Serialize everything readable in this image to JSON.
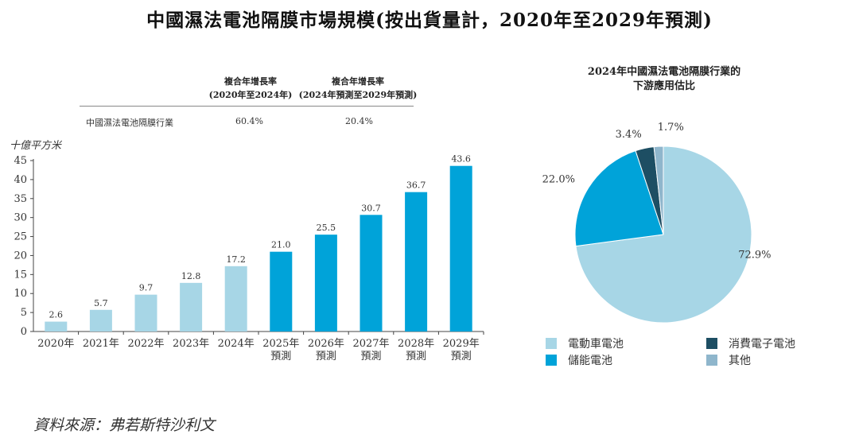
{
  "title": "中國濕法電池隔膜市場規模(按出貨量計，2020年至2029年預測)",
  "cagr_table": {
    "col1_header": [
      "複合年增長率",
      "(2020年至2024年)"
    ],
    "col2_header": [
      "複合年增長率",
      "(2024年預測至2029年預測)"
    ],
    "row_label": "中國濕法電池隔膜行業",
    "col1_value": "60.4%",
    "col2_value": "20.4%"
  },
  "unit_label": "十億平方米",
  "source": "資料來源：弗若斯特沙利文",
  "colors": {
    "actual": "#a7d6e6",
    "forecast": "#00a3d9",
    "consumer": "#1d4e63",
    "other": "#8fb6cc"
  },
  "pie_title_lines": [
    "2024年中國濕法電池隔膜行業的",
    "下游應用估比"
  ],
  "chart_data": [
    {
      "type": "bar",
      "title": "中國濕法電池隔膜市場規模(按出貨量計，2020年至2029年預測)",
      "ylabel": "十億平方米",
      "ylim": [
        0,
        45
      ],
      "yticks": [
        0,
        5,
        10,
        15,
        20,
        25,
        30,
        35,
        40,
        45
      ],
      "categories": [
        [
          "2020年"
        ],
        [
          "2021年"
        ],
        [
          "2022年"
        ],
        [
          "2023年"
        ],
        [
          "2024年"
        ],
        [
          "2025年",
          "預測"
        ],
        [
          "2026年",
          "預測"
        ],
        [
          "2027年",
          "預測"
        ],
        [
          "2028年",
          "預測"
        ],
        [
          "2029年",
          "預測"
        ]
      ],
      "values": [
        2.6,
        5.7,
        9.7,
        12.8,
        17.2,
        21.0,
        25.5,
        30.7,
        36.7,
        43.6
      ],
      "value_labels": [
        "2.6",
        "5.7",
        "9.7",
        "12.8",
        "17.2",
        "21.0",
        "25.5",
        "30.7",
        "36.7",
        "43.6"
      ],
      "forecast": [
        false,
        false,
        false,
        false,
        false,
        true,
        true,
        true,
        true,
        true
      ]
    },
    {
      "type": "pie",
      "title": "2024年中國濕法電池隔膜行業的下游應用估比",
      "slices": [
        {
          "name": "電動車電池",
          "value": 72.9,
          "label": "72.9%",
          "color": "#a7d6e6"
        },
        {
          "name": "儲能電池",
          "value": 22.0,
          "label": "22.0%",
          "color": "#00a3d9"
        },
        {
          "name": "消費電子電池",
          "value": 3.4,
          "label": "3.4%",
          "color": "#1d4e63"
        },
        {
          "name": "其他",
          "value": 1.7,
          "label": "1.7%",
          "color": "#8fb6cc"
        }
      ],
      "legend": [
        {
          "name": "電動車電池",
          "color": "#a7d6e6"
        },
        {
          "name": "消費電子電池",
          "color": "#1d4e63"
        },
        {
          "name": "儲能電池",
          "color": "#00a3d9"
        },
        {
          "name": "其他",
          "color": "#8fb6cc"
        }
      ]
    }
  ]
}
